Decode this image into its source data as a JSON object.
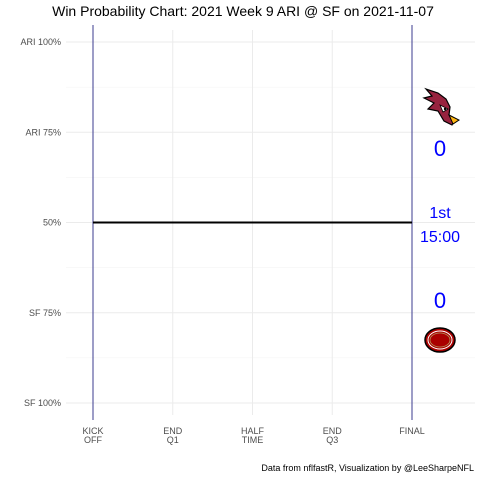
{
  "chart_data": {
    "type": "line",
    "title": "Win Probability Chart: 2021 Week 9 ARI @ SF on 2021-11-07",
    "caption": "Data from nflfastR, Visualization by @LeeSharpeNFL",
    "xlabel": "",
    "ylabel": "",
    "grid": true,
    "legend": "none",
    "x_ticks": [
      {
        "value": 0,
        "lines": [
          "KICK",
          "OFF"
        ]
      },
      {
        "value": 15,
        "lines": [
          "END",
          "Q1"
        ]
      },
      {
        "value": 30,
        "lines": [
          "HALF",
          "TIME"
        ]
      },
      {
        "value": 45,
        "lines": [
          "END",
          "Q3"
        ]
      },
      {
        "value": 60,
        "lines": [
          "FINAL"
        ]
      }
    ],
    "xlim": [
      0,
      60
    ],
    "y_ticks": [
      {
        "value": 1.0,
        "label": "ARI 100%"
      },
      {
        "value": 0.75,
        "label": "ARI 75%"
      },
      {
        "value": 0.5,
        "label": "50%"
      },
      {
        "value": 0.25,
        "label": "SF 75%"
      },
      {
        "value": 0.0,
        "label": "SF 100%"
      }
    ],
    "ylim": [
      0,
      1
    ],
    "series": [
      {
        "x": [
          0,
          60
        ],
        "values": [
          0.5,
          0.5
        ],
        "color": "#000000"
      }
    ],
    "vlines": [
      {
        "x": 0,
        "color": "#3b3b8f"
      },
      {
        "x": 60,
        "color": "#3b3b8f"
      }
    ],
    "away_team": "ARI",
    "home_team": "SF",
    "away_score": "0",
    "home_score": "0",
    "quarter": "1st",
    "clock": "15:00",
    "text_color": "#0000ff",
    "away_logo_color": "#97233f",
    "home_logo_color": "#aa0000"
  }
}
